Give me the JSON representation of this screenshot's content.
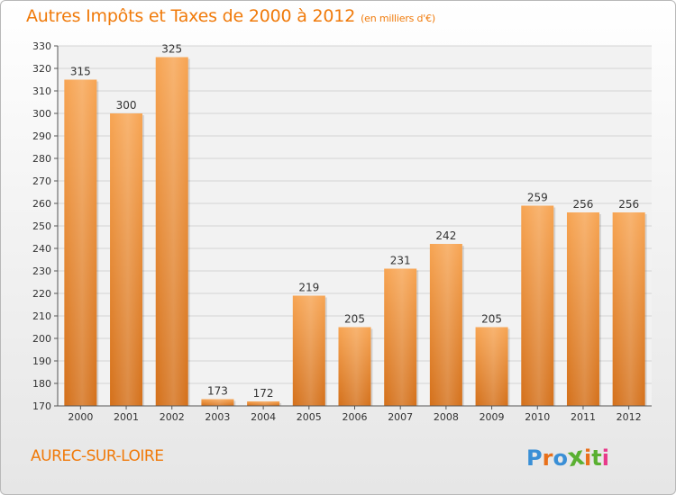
{
  "header": {
    "title": "Autres Impôts et Taxes de 2000 à 2012",
    "unit": "(en milliers d'€)"
  },
  "footer": {
    "commune": "AUREC-SUR-LOIRE",
    "brand": "Proxiti"
  },
  "colors": {
    "bar_light": "#f7a04f",
    "bar_dark": "#d9751a",
    "title": "#f07a0a",
    "brand_letters": [
      "#3a8fd6",
      "#e8701a",
      "#3a8fd6",
      "#5ab031",
      "#e8701a",
      "#5ab031",
      "#e83a8a"
    ]
  },
  "chart_data": {
    "type": "bar",
    "title": "Autres Impôts et Taxes de 2000 à 2012",
    "categories": [
      "2000",
      "2001",
      "2002",
      "2003",
      "2004",
      "2005",
      "2006",
      "2007",
      "2008",
      "2009",
      "2010",
      "2011",
      "2012"
    ],
    "values": [
      315,
      300,
      325,
      173,
      172,
      219,
      205,
      231,
      242,
      205,
      259,
      256,
      256
    ],
    "ylim": [
      170,
      330
    ],
    "yticks": [
      170,
      180,
      190,
      200,
      210,
      220,
      230,
      240,
      250,
      260,
      270,
      280,
      290,
      300,
      310,
      320,
      330
    ],
    "grid": true,
    "legend": "none",
    "xlabel": "",
    "ylabel": ""
  }
}
